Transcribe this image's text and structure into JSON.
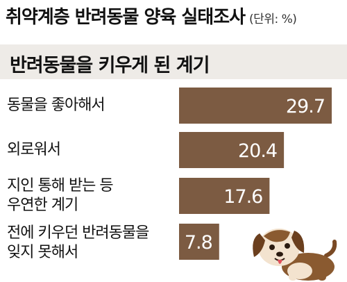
{
  "header": {
    "title": "취약계층 반려동물 양육 실태조사",
    "unit": "(단위: %)"
  },
  "chart_data": {
    "type": "bar",
    "orientation": "horizontal",
    "title": "반려동물을 키우게 된 계기",
    "categories": [
      "동물을 좋아해서",
      "외로워서",
      "지인 통해 받는 등 우연한 계기",
      "전에 키우던 반려동물을 잊지 못해서"
    ],
    "category_lines": [
      [
        "동물을 좋아해서"
      ],
      [
        "외로워서"
      ],
      [
        "지인 통해 받는 등",
        "우연한 계기"
      ],
      [
        "전에 키우던 반려동물을",
        "잊지 못해서"
      ]
    ],
    "values": [
      29.7,
      20.4,
      17.6,
      7.8
    ],
    "value_labels": [
      "29.7",
      "20.4",
      "17.6",
      "7.8"
    ],
    "xlim": [
      0,
      29.7
    ],
    "bar_color": "#7c5b42"
  },
  "illustration": {
    "icon": "dog-icon"
  }
}
